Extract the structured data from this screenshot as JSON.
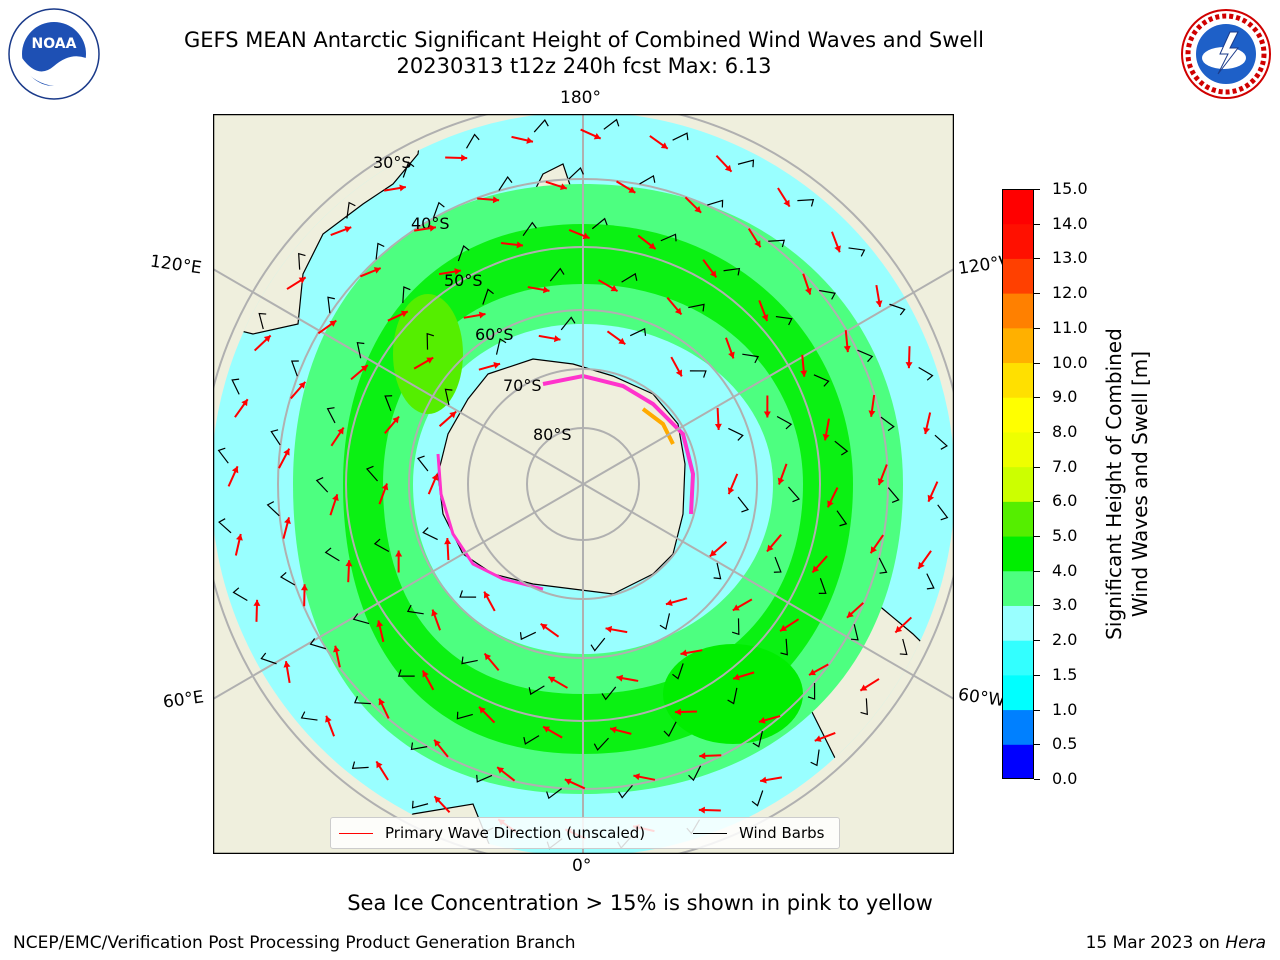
{
  "header": {
    "title_line1": "GEFS MEAN Antarctic Significant Height of Combined Wind Waves and Swell",
    "title_line2": "20230313 t12z 240h fcst   Max: 6.13"
  },
  "logos": {
    "left": {
      "icon": "noaa-logo-icon",
      "text": "NOAA",
      "ring_text": "NATIONAL OCEANIC AND ATMOSPHERIC ADMINISTRATION · U.S. DEPARTMENT OF COMMERCE"
    },
    "right": {
      "icon": "nws-logo-icon",
      "ring_text": "NATIONAL WEATHER SERVICE"
    }
  },
  "map": {
    "projection": "south-polar-stereographic",
    "lon_labels": {
      "top": "180°",
      "bottom": "0°",
      "upper_left": "120°E",
      "upper_right": "120°W",
      "lower_left": "60°E",
      "lower_right": "60°W"
    },
    "lat_labels": [
      "30°S",
      "40°S",
      "50°S",
      "60°S",
      "70°S",
      "80°S"
    ],
    "colors": {
      "land": "#efefdd",
      "wave_lt2": "#33ffff",
      "wave_2_3": "#99ffff",
      "wave_3_4": "#4dff80",
      "wave_4_5": "#00ee00",
      "wave_5_6": "#55ee00",
      "sea_ice_low": "#ff33cc",
      "sea_ice_high": "#ffaa00",
      "wave_arrow": "#ff0000",
      "wind_barb": "#000000",
      "grid": "#b0b0b0"
    },
    "max_wave_height_m": 6.13
  },
  "colorbar": {
    "label_line1": "Significant Height of Combined",
    "label_line2": "Wind Waves and Swell [m]",
    "ticks": [
      "0.0",
      "0.5",
      "1.0",
      "1.5",
      "2.0",
      "3.0",
      "4.0",
      "5.0",
      "6.0",
      "7.0",
      "8.0",
      "9.0",
      "10.0",
      "11.0",
      "12.0",
      "13.0",
      "14.0",
      "15.0"
    ],
    "bin_colors": [
      "#0000ff",
      "#0080ff",
      "#00ffff",
      "#33ffff",
      "#99ffff",
      "#4dff80",
      "#00ee00",
      "#55ee00",
      "#ccff00",
      "#eeff00",
      "#ffff00",
      "#ffe000",
      "#ffb000",
      "#ff8000",
      "#ff4000",
      "#ff1000",
      "#ff0000"
    ]
  },
  "legend": {
    "items": [
      {
        "label": "Primary Wave Direction (unscaled)",
        "color": "#ff0000"
      },
      {
        "label": "Wind Barbs",
        "color": "#000000"
      }
    ]
  },
  "footnote": "Sea Ice Concentration > 15% is shown in pink to yellow",
  "credits": {
    "left": "NCEP/EMC/Verification Post Processing Product Generation Branch",
    "right_prefix": "15 Mar 2023 on ",
    "right_machine": "Hera"
  }
}
